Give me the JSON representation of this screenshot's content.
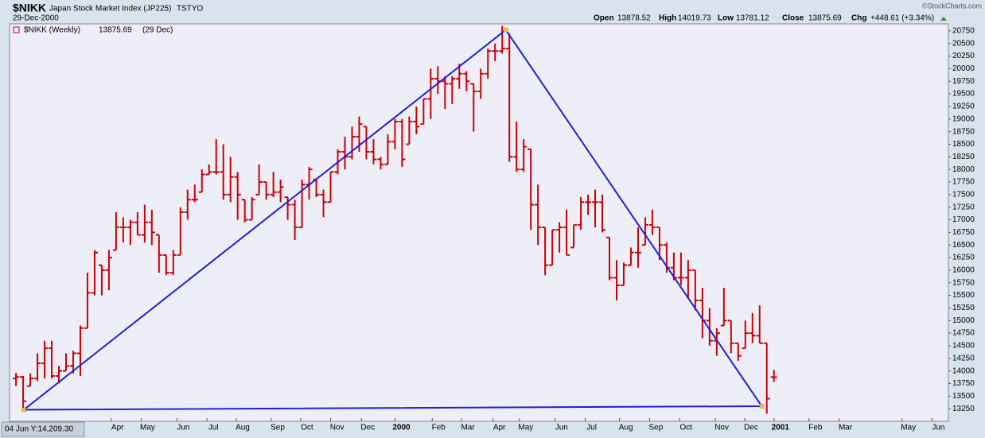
{
  "header": {
    "symbol": "$NIKK",
    "name": "Japan Stock Market Index (JP225)",
    "exchange": "TSTYO",
    "date": "29-Dec-2000",
    "source": "©StockCharts.com",
    "open_label": "Open",
    "high_label": "High",
    "low_label": "Low",
    "close_label": "Close",
    "chg_label": "Chg",
    "chg": "+448.61 (+3.34%)"
  },
  "chart_data": {
    "type": "ohlc",
    "legend": {
      "name": "$NIKK (Weekly)",
      "date": "(29 Dec)"
    },
    "annotation": "04 Jun Y:14,209.30",
    "color": "#cc0000",
    "ohlc": {
      "open": [
        13850,
        13880,
        13700,
        13850,
        14150,
        14450,
        13900,
        14000,
        14100,
        14350,
        14850,
        15550,
        16100,
        16000,
        16400,
        16850,
        16850,
        16950,
        16700,
        16950,
        16700,
        16300,
        15950,
        16300,
        17150,
        17400,
        17550,
        17900,
        17950,
        17950,
        17500,
        17850,
        17400,
        17000,
        17500,
        17750,
        17500,
        17550,
        17450,
        17300,
        16850,
        17700,
        17800,
        17500,
        17350,
        17950,
        18350,
        18250,
        18650,
        18850,
        18350,
        18200,
        18100,
        18550,
        18950,
        18500,
        18950,
        18900,
        19400,
        19800,
        19750,
        19700,
        19800,
        19900,
        19700,
        19550,
        19900,
        20350,
        20350,
        20400,
        18250,
        18000,
        18400,
        17300,
        16850,
        16100,
        16800,
        16850,
        16450,
        16900,
        17350,
        17350,
        17350,
        16650,
        15850,
        15700,
        16100,
        16350,
        16500,
        16900,
        16850,
        16500,
        16050,
        15850,
        15850,
        16000,
        15400,
        15000,
        14600,
        14900,
        15000,
        14550,
        14450,
        14750,
        14700,
        14550,
        13878.52
      ],
      "high": [
        13960,
        13900,
        13950,
        14350,
        14600,
        14600,
        14100,
        14350,
        14400,
        14900,
        15950,
        16400,
        16100,
        16400,
        17150,
        17050,
        17000,
        17150,
        17300,
        17200,
        16700,
        16300,
        16400,
        17250,
        17600,
        17700,
        18000,
        18100,
        18600,
        18500,
        18250,
        17950,
        17400,
        17450,
        18100,
        17750,
        17950,
        17800,
        17450,
        17400,
        17800,
        18050,
        17800,
        17600,
        17950,
        18400,
        18650,
        18850,
        19050,
        18850,
        18600,
        18250,
        18700,
        19000,
        19000,
        19050,
        19250,
        19400,
        20000,
        20050,
        19850,
        19850,
        20100,
        19950,
        19700,
        20000,
        20400,
        20500,
        20850,
        20700,
        18950,
        18600,
        18400,
        17700,
        16850,
        16800,
        16950,
        17200,
        16900,
        17450,
        17500,
        17600,
        17500,
        16650,
        16200,
        16150,
        16450,
        16850,
        17050,
        17200,
        16850,
        16550,
        16350,
        16350,
        16200,
        16000,
        15650,
        15250,
        14850,
        15650,
        15000,
        14550,
        15000,
        15150,
        15300,
        14550,
        14019.73
      ],
      "low": [
        13700,
        13230,
        13700,
        13800,
        13850,
        13850,
        13750,
        14000,
        13950,
        13900,
        14850,
        15500,
        15500,
        15600,
        16400,
        16550,
        16500,
        16700,
        16550,
        16500,
        15950,
        15900,
        15900,
        16300,
        17000,
        17350,
        17550,
        17900,
        17900,
        17400,
        17350,
        17000,
        16950,
        17000,
        17500,
        17400,
        17450,
        17350,
        17000,
        16600,
        16850,
        17400,
        17450,
        17050,
        17350,
        17900,
        18000,
        18200,
        18350,
        18200,
        18100,
        18000,
        18100,
        18400,
        18050,
        18500,
        18700,
        18900,
        19000,
        19500,
        19200,
        19300,
        19600,
        19550,
        18750,
        19400,
        19800,
        20150,
        20300,
        18150,
        17950,
        17950,
        16800,
        16500,
        15900,
        16100,
        16350,
        16300,
        16450,
        16800,
        17100,
        16850,
        16750,
        15800,
        15400,
        15700,
        16100,
        16050,
        16500,
        16700,
        16200,
        15950,
        15800,
        15700,
        15450,
        15200,
        14650,
        14500,
        14300,
        14900,
        14350,
        14200,
        14450,
        14550,
        14550,
        13150,
        13781.12
      ],
      "close": [
        13880,
        13400,
        13850,
        14150,
        14450,
        13900,
        14000,
        14100,
        14350,
        14850,
        15550,
        16350,
        16000,
        16250,
        16850,
        16850,
        16950,
        16700,
        16950,
        16750,
        16300,
        15950,
        16300,
        17150,
        17400,
        17400,
        17900,
        17950,
        17950,
        17500,
        17850,
        17500,
        17000,
        17400,
        17750,
        17500,
        17550,
        17650,
        17300,
        16850,
        17700,
        18000,
        17500,
        17350,
        17950,
        18350,
        18250,
        18650,
        18900,
        18350,
        18200,
        18100,
        18550,
        18950,
        18200,
        18950,
        18850,
        19400,
        19800,
        19750,
        19700,
        19800,
        19900,
        19750,
        19550,
        19900,
        20350,
        20350,
        20400,
        18250,
        18000,
        18450,
        17300,
        16850,
        16100,
        16800,
        16850,
        16300,
        16900,
        17350,
        17350,
        17350,
        16800,
        15850,
        15700,
        16100,
        16350,
        16350,
        16900,
        16850,
        16500,
        16050,
        15850,
        15850,
        16000,
        15400,
        15000,
        14600,
        14750,
        15000,
        14550,
        14300,
        14750,
        14700,
        14550,
        13450,
        13875.69
      ]
    },
    "trendline": {
      "color": "#1f1fdd",
      "x": [
        1.1,
        68.5,
        104.3
      ],
      "y": [
        13230,
        20770,
        13300
      ]
    },
    "xlim": [
      -0.9,
      130.4
    ],
    "xticks": [
      {
        "value": 14.2,
        "label": "Apr"
      },
      {
        "value": 18.4,
        "label": "May"
      },
      {
        "value": 23.4,
        "label": "Jun"
      },
      {
        "value": 27.6,
        "label": "Jul"
      },
      {
        "value": 31.7,
        "label": "Aug"
      },
      {
        "value": 36.6,
        "label": "Sep"
      },
      {
        "value": 40.7,
        "label": "Oct"
      },
      {
        "value": 44.9,
        "label": "Nov"
      },
      {
        "value": 49.2,
        "label": "Dec"
      },
      {
        "value": 53.9,
        "label": "2000"
      },
      {
        "value": 59.1,
        "label": "Feb"
      },
      {
        "value": 63.2,
        "label": "Mar"
      },
      {
        "value": 67.6,
        "label": "Apr"
      },
      {
        "value": 71.3,
        "label": "May"
      },
      {
        "value": 76.3,
        "label": "Jun"
      },
      {
        "value": 80.5,
        "label": "Jul"
      },
      {
        "value": 85.3,
        "label": "Aug"
      },
      {
        "value": 89.5,
        "label": "Sep"
      },
      {
        "value": 93.7,
        "label": "Oct"
      },
      {
        "value": 98.7,
        "label": "Nov"
      },
      {
        "value": 102.8,
        "label": "Dec"
      },
      {
        "value": 106.9,
        "label": "2001"
      },
      {
        "value": 111.8,
        "label": "Feb"
      },
      {
        "value": 116,
        "label": "Mar"
      },
      {
        "value": 124.8,
        "label": "May"
      },
      {
        "value": 129,
        "label": "Jun"
      }
    ],
    "ylim": [
      13000,
      20890
    ],
    "yticks": [
      13250,
      13500,
      13750,
      14000,
      14250,
      14500,
      14750,
      15000,
      15250,
      15500,
      15750,
      16000,
      16250,
      16500,
      16750,
      17000,
      17250,
      17500,
      17750,
      18000,
      18250,
      18500,
      18750,
      19000,
      19250,
      19500,
      19750,
      20000,
      20250,
      20500,
      20750
    ],
    "grid": false
  }
}
